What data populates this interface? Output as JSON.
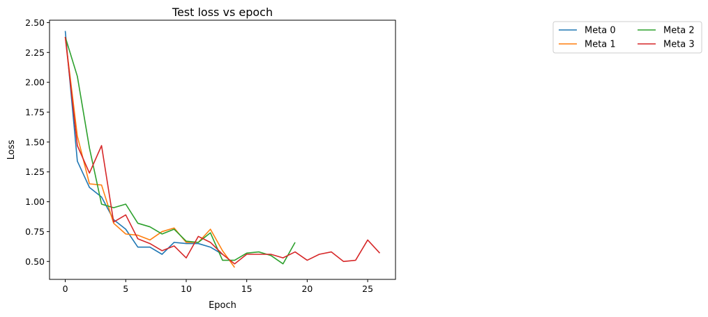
{
  "chart_data": {
    "type": "line",
    "title": "Test loss vs epoch",
    "xlabel": "Epoch",
    "ylabel": "Loss",
    "xlim": [
      -1.3,
      27.3
    ],
    "ylim": [
      0.35,
      2.52
    ],
    "xticks": [
      0,
      5,
      10,
      15,
      20,
      25
    ],
    "yticks": [
      0.5,
      0.75,
      1.0,
      1.25,
      1.5,
      1.75,
      2.0,
      2.25,
      2.5
    ],
    "ytick_labels": [
      "0.50",
      "0.75",
      "1.00",
      "1.25",
      "1.50",
      "1.75",
      "2.00",
      "2.25",
      "2.50"
    ],
    "grid": false,
    "legend": {
      "placement": "outside-top-right",
      "columns": 2
    },
    "series": [
      {
        "name": "Meta 0",
        "color": "#1f77b4",
        "x": [
          0,
          1,
          2,
          3,
          4,
          5,
          6,
          7,
          8,
          9,
          10,
          11,
          12,
          13
        ],
        "y": [
          2.43,
          1.34,
          1.12,
          1.04,
          0.85,
          0.77,
          0.62,
          0.62,
          0.56,
          0.66,
          0.65,
          0.65,
          0.62,
          0.56
        ]
      },
      {
        "name": "Meta 1",
        "color": "#ff7f0e",
        "x": [
          0,
          1,
          2,
          3,
          4,
          5,
          6,
          7,
          8,
          9,
          10,
          11,
          12,
          13,
          14
        ],
        "y": [
          2.38,
          1.55,
          1.15,
          1.14,
          0.82,
          0.73,
          0.72,
          0.68,
          0.75,
          0.78,
          0.66,
          0.66,
          0.77,
          0.59,
          0.45
        ]
      },
      {
        "name": "Meta 2",
        "color": "#2ca02c",
        "x": [
          0,
          1,
          2,
          3,
          4,
          5,
          6,
          7,
          8,
          9,
          10,
          11,
          12,
          13,
          14,
          15,
          16,
          17,
          18,
          19
        ],
        "y": [
          2.38,
          2.05,
          1.45,
          0.98,
          0.95,
          0.98,
          0.82,
          0.79,
          0.73,
          0.77,
          0.67,
          0.66,
          0.74,
          0.51,
          0.51,
          0.57,
          0.58,
          0.55,
          0.48,
          0.66
        ]
      },
      {
        "name": "Meta 3",
        "color": "#d62728",
        "x": [
          0,
          1,
          2,
          3,
          4,
          5,
          6,
          7,
          8,
          9,
          10,
          11,
          12,
          13,
          14,
          15,
          16,
          17,
          18,
          19,
          20,
          21,
          22,
          23,
          24,
          25,
          26
        ],
        "y": [
          2.38,
          1.47,
          1.24,
          1.47,
          0.83,
          0.89,
          0.69,
          0.65,
          0.59,
          0.63,
          0.53,
          0.71,
          0.66,
          0.56,
          0.48,
          0.56,
          0.56,
          0.56,
          0.53,
          0.58,
          0.51,
          0.56,
          0.58,
          0.5,
          0.51,
          0.68,
          0.57
        ]
      }
    ]
  }
}
